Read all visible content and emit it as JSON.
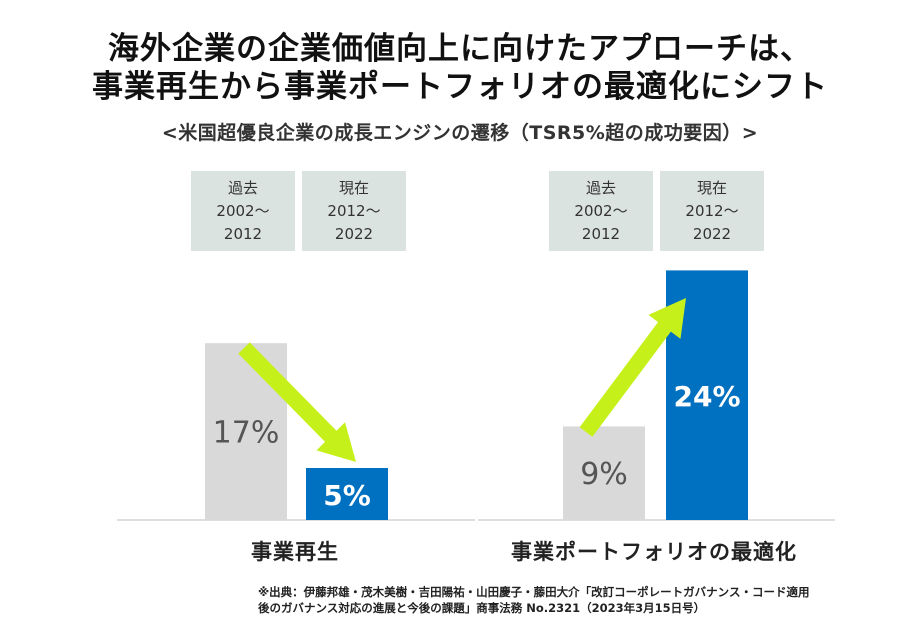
{
  "title_lines": [
    "海外企業の企業価値向上に向けたアプローチは、",
    "事業再生から事業ポートフォリオの最適化にシフト"
  ],
  "subtitle": "<米国超優良企業の成長エンジンの遷移（TSR5%超の成功要因）>",
  "period_boxes": [
    {
      "lines": [
        "過去",
        "2002～",
        "2012"
      ]
    },
    {
      "lines": [
        "現在",
        "2012～",
        "2022"
      ]
    },
    {
      "lines": [
        "過去",
        "2002～",
        "2012"
      ]
    },
    {
      "lines": [
        "現在",
        "2012～",
        "2022"
      ]
    }
  ],
  "footnote_lines": [
    "※出典：伊藤邦雄・茂木美樹・吉田陽祐・山田慶子・藤田大介「改訂コーポレートガバナンス・コード適用",
    "後のガバナンス対応の進展と今後の課題」商事法務 No.2321（2023年3月15日号）"
  ],
  "colors": {
    "past_bar": "#d9d9d9",
    "present_bar": "#0070c0",
    "arrow": "#c6f01a",
    "past_label": "#555555",
    "present_label": "#ffffff",
    "axis": "#bfbfbf"
  },
  "chart_data": {
    "type": "bar",
    "categories": [
      "事業再生",
      "事業ポートフォリオの最適化"
    ],
    "series": [
      {
        "name": "過去 2002～2012",
        "values": [
          17,
          9
        ],
        "labels": [
          "17%",
          "9%"
        ]
      },
      {
        "name": "現在 2012～2022",
        "values": [
          5,
          24
        ],
        "labels": [
          "5%",
          "24%"
        ]
      }
    ],
    "ylim": [
      0,
      30
    ],
    "grid": false,
    "annotations": [
      "arrow-down",
      "arrow-up"
    ]
  }
}
